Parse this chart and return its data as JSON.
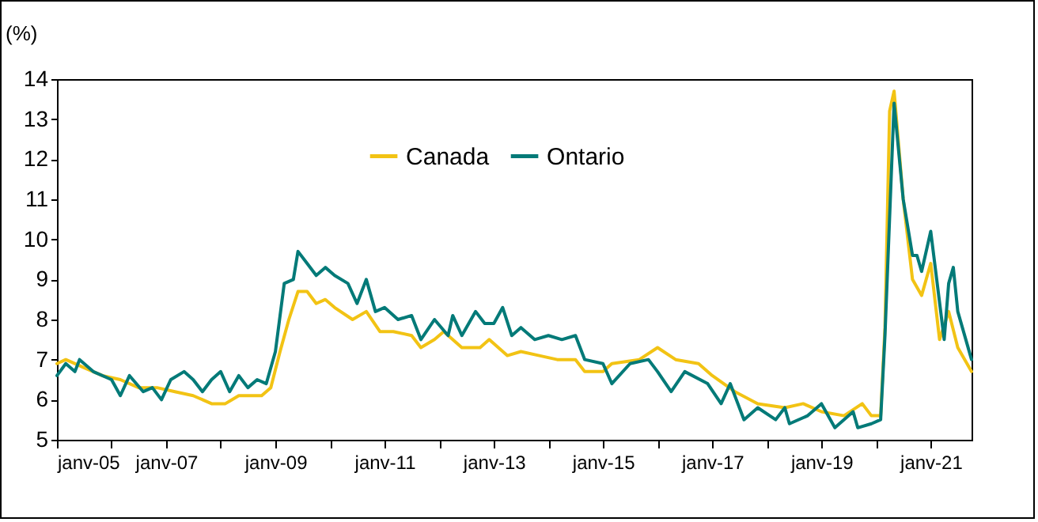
{
  "chart_data": {
    "type": "line",
    "ylabel": "(%)",
    "xlim": [
      "2005-01",
      "2021-10"
    ],
    "ylim": [
      5,
      14
    ],
    "yticks": [
      5,
      6,
      7,
      8,
      9,
      10,
      11,
      12,
      13,
      14
    ],
    "xticks": [
      {
        "value": "2005-01",
        "label": "janv-05"
      },
      {
        "value": "2006-01",
        "label": null
      },
      {
        "value": "2007-01",
        "label": "janv-07"
      },
      {
        "value": "2008-01",
        "label": null
      },
      {
        "value": "2009-01",
        "label": "janv-09"
      },
      {
        "value": "2010-01",
        "label": null
      },
      {
        "value": "2011-01",
        "label": "janv-11"
      },
      {
        "value": "2012-01",
        "label": null
      },
      {
        "value": "2013-01",
        "label": "janv-13"
      },
      {
        "value": "2014-01",
        "label": null
      },
      {
        "value": "2015-01",
        "label": "janv-15"
      },
      {
        "value": "2016-01",
        "label": null
      },
      {
        "value": "2017-01",
        "label": "janv-17"
      },
      {
        "value": "2018-01",
        "label": null
      },
      {
        "value": "2019-01",
        "label": "janv-19"
      },
      {
        "value": "2020-01",
        "label": null
      },
      {
        "value": "2021-01",
        "label": "janv-21"
      }
    ],
    "grid": false,
    "legend": "top",
    "marker": "none",
    "line_style": "solid",
    "series": [
      {
        "name": "Canada",
        "color": "#f2c314",
        "x": [
          "2005-01",
          "2005-03",
          "2005-07",
          "2005-11",
          "2006-03",
          "2006-07",
          "2006-11",
          "2007-03",
          "2007-07",
          "2007-11",
          "2008-02",
          "2008-05",
          "2008-10",
          "2008-12",
          "2009-02",
          "2009-04",
          "2009-06",
          "2009-08",
          "2009-10",
          "2009-12",
          "2010-02",
          "2010-06",
          "2010-09",
          "2010-12",
          "2011-03",
          "2011-07",
          "2011-09",
          "2011-12",
          "2012-02",
          "2012-06",
          "2012-10",
          "2012-12",
          "2013-04",
          "2013-07",
          "2013-11",
          "2014-03",
          "2014-07",
          "2014-09",
          "2015-01",
          "2015-03",
          "2015-09",
          "2016-01",
          "2016-05",
          "2016-10",
          "2017-01",
          "2017-06",
          "2017-11",
          "2018-05",
          "2018-09",
          "2019-01",
          "2019-06",
          "2019-10",
          "2019-12",
          "2020-02",
          "2020-03",
          "2020-04",
          "2020-05",
          "2020-07",
          "2020-09",
          "2020-11",
          "2021-01",
          "2021-03",
          "2021-05",
          "2021-07",
          "2021-10"
        ],
        "values": [
          6.9,
          7.0,
          6.8,
          6.6,
          6.5,
          6.3,
          6.3,
          6.2,
          6.1,
          5.9,
          5.9,
          6.1,
          6.1,
          6.3,
          7.2,
          8.0,
          8.7,
          8.7,
          8.4,
          8.5,
          8.3,
          8.0,
          8.2,
          7.7,
          7.7,
          7.6,
          7.3,
          7.5,
          7.7,
          7.3,
          7.3,
          7.5,
          7.1,
          7.2,
          7.1,
          7.0,
          7.0,
          6.7,
          6.7,
          6.9,
          7.0,
          7.3,
          7.0,
          6.9,
          6.6,
          6.2,
          5.9,
          5.8,
          5.9,
          5.7,
          5.6,
          5.9,
          5.6,
          5.6,
          7.8,
          13.2,
          13.7,
          11.0,
          9.0,
          8.6,
          9.4,
          7.5,
          8.2,
          7.3,
          6.7
        ]
      },
      {
        "name": "Ontario",
        "color": "#037a78",
        "x": [
          "2005-01",
          "2005-03",
          "2005-05",
          "2005-06",
          "2005-09",
          "2006-01",
          "2006-03",
          "2006-05",
          "2006-08",
          "2006-10",
          "2006-12",
          "2007-02",
          "2007-05",
          "2007-07",
          "2007-09",
          "2007-11",
          "2008-01",
          "2008-03",
          "2008-05",
          "2008-07",
          "2008-09",
          "2008-11",
          "2009-01",
          "2009-03",
          "2009-05",
          "2009-06",
          "2009-08",
          "2009-10",
          "2009-12",
          "2010-02",
          "2010-05",
          "2010-07",
          "2010-09",
          "2010-11",
          "2011-01",
          "2011-04",
          "2011-07",
          "2011-09",
          "2011-12",
          "2012-03",
          "2012-04",
          "2012-06",
          "2012-09",
          "2012-11",
          "2013-01",
          "2013-03",
          "2013-05",
          "2013-07",
          "2013-10",
          "2014-01",
          "2014-04",
          "2014-07",
          "2014-09",
          "2015-01",
          "2015-03",
          "2015-07",
          "2015-11",
          "2016-01",
          "2016-04",
          "2016-07",
          "2016-12",
          "2017-03",
          "2017-05",
          "2017-08",
          "2017-11",
          "2018-03",
          "2018-05",
          "2018-06",
          "2018-10",
          "2019-01",
          "2019-04",
          "2019-08",
          "2019-09",
          "2019-12",
          "2020-02",
          "2020-03",
          "2020-05",
          "2020-07",
          "2020-09",
          "2020-10",
          "2020-11",
          "2021-01",
          "2021-04",
          "2021-05",
          "2021-06",
          "2021-07",
          "2021-10"
        ],
        "values": [
          6.6,
          6.9,
          6.7,
          7.0,
          6.7,
          6.5,
          6.1,
          6.6,
          6.2,
          6.3,
          6.0,
          6.5,
          6.7,
          6.5,
          6.2,
          6.5,
          6.7,
          6.2,
          6.6,
          6.3,
          6.5,
          6.4,
          7.2,
          8.9,
          9.0,
          9.7,
          9.4,
          9.1,
          9.3,
          9.1,
          8.9,
          8.4,
          9.0,
          8.2,
          8.3,
          8.0,
          8.1,
          7.5,
          8.0,
          7.6,
          8.1,
          7.6,
          8.2,
          7.9,
          7.9,
          8.3,
          7.6,
          7.8,
          7.5,
          7.6,
          7.5,
          7.6,
          7.0,
          6.9,
          6.4,
          6.9,
          7.0,
          6.7,
          6.2,
          6.7,
          6.4,
          5.9,
          6.4,
          5.5,
          5.8,
          5.5,
          5.8,
          5.4,
          5.6,
          5.9,
          5.3,
          5.7,
          5.3,
          5.4,
          5.5,
          7.6,
          13.4,
          11.0,
          9.6,
          9.6,
          9.2,
          10.2,
          7.5,
          8.9,
          9.3,
          8.2,
          7.0
        ]
      }
    ]
  }
}
